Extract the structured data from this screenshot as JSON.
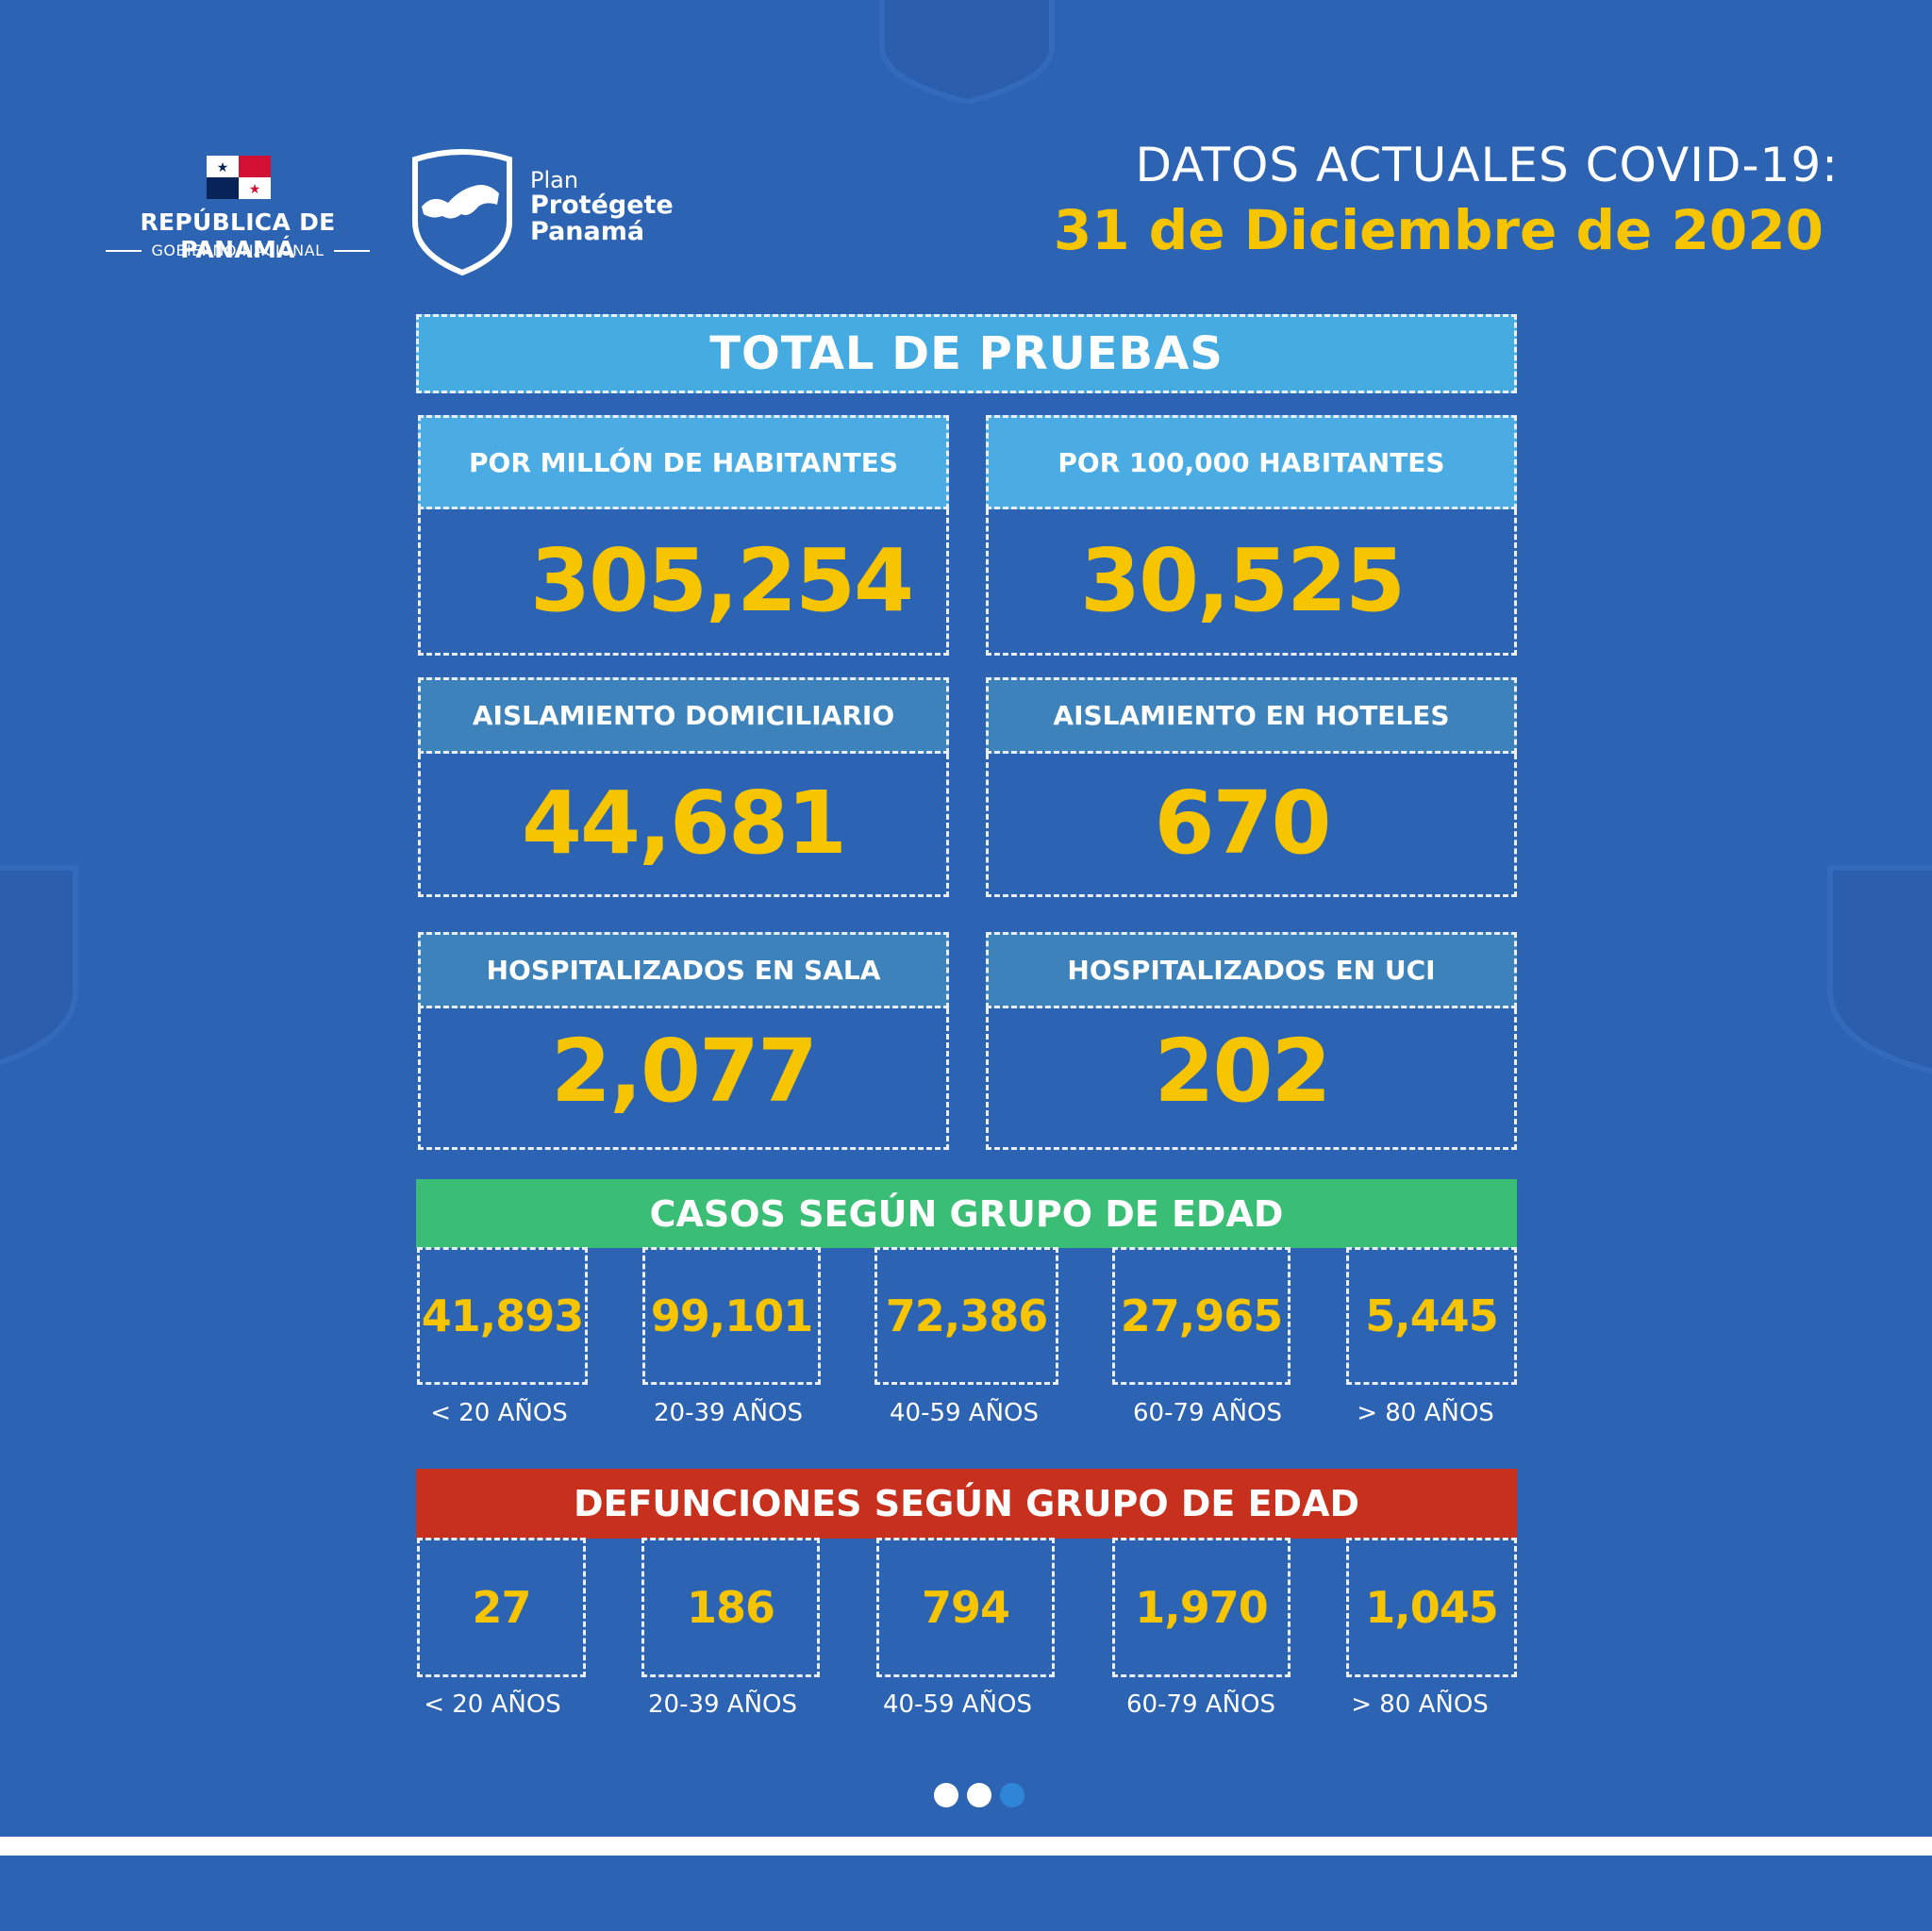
{
  "header": {
    "country": "REPÚBLICA DE PANAMÁ",
    "government": "GOBIERNO NACIONAL",
    "plan_word": "Plan",
    "plan_name_line1": "Protégete",
    "plan_name_line2": "Panamá",
    "title": "DATOS ACTUALES COVID-19:",
    "date": "31 de Diciembre de 2020"
  },
  "pruebas": {
    "banner": "TOTAL DE PRUEBAS",
    "per_million_label": "POR MILLÓN DE HABITANTES",
    "per_million_value": "305,254",
    "per_100k_label": "POR 100,000 HABITANTES",
    "per_100k_value": "30,525"
  },
  "aislamiento": {
    "domiciliario_label": "AISLAMIENTO DOMICILIARIO",
    "domiciliario_value": "44,681",
    "hoteles_label": "AISLAMIENTO EN HOTELES",
    "hoteles_value": "670"
  },
  "hospitalizados": {
    "sala_label": "HOSPITALIZADOS EN SALA",
    "sala_value": "2,077",
    "uci_label": "HOSPITALIZADOS EN UCI",
    "uci_value": "202"
  },
  "casos": {
    "banner": "CASOS SEGÚN GRUPO DE EDAD",
    "values": [
      "41,893",
      "99,101",
      "72,386",
      "27,965",
      "5,445"
    ],
    "ages": [
      "< 20 AÑOS",
      "20-39 AÑOS",
      "40-59 AÑOS",
      "60-79 AÑOS",
      "> 80 AÑOS"
    ]
  },
  "defunciones": {
    "banner": "DEFUNCIONES SEGÚN GRUPO DE EDAD",
    "values": [
      "27",
      "186",
      "794",
      "1,970",
      "1,045"
    ],
    "ages": [
      "< 20 AÑOS",
      "20-39 AÑOS",
      "40-59 AÑOS",
      "60-79 AÑOS",
      "> 80 AÑOS"
    ]
  },
  "carousel": {
    "total": 3,
    "active_index": 2
  },
  "colors": {
    "background": "#2d63b3",
    "accent_yellow": "#f7c400",
    "banner_blue": "#45abe1",
    "label_teal": "#3d82ba",
    "casos_green": "#3abd74",
    "defunciones_red": "#c8301e"
  },
  "icons": [
    "panama-flag-icon",
    "shield-logo-icon",
    "decorative-shield-icon"
  ]
}
